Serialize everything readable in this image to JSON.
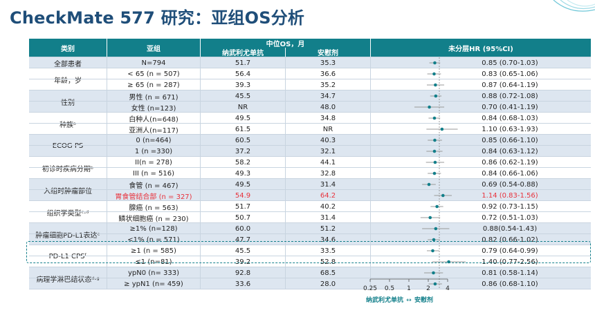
{
  "title": "CheckMate 577 研究：亚组OS分析",
  "headers": {
    "category": "类别",
    "subgroup": "亚组",
    "median_os": "中位OS，月",
    "arm_nivo": "纳武利尤单抗",
    "arm_placebo": "安慰剂",
    "hr": "未分层HR (95%CI)"
  },
  "rows": [
    {
      "category": "全部患者",
      "subgroup": "N=794",
      "nivo": "51.7",
      "placebo": "35.3",
      "hr_text": "0.85 (0.70-1.03)",
      "hr": 0.85,
      "lo": 0.7,
      "hi": 1.03,
      "highlight": false
    },
    {
      "category": "年龄，岁",
      "subgroup": "< 65 (n = 507)",
      "nivo": "56.4",
      "placebo": "36.6",
      "hr_text": "0.83 (0.65-1.06)",
      "hr": 0.83,
      "lo": 0.65,
      "hi": 1.06,
      "highlight": false
    },
    {
      "category": "",
      "subgroup": "≥ 65 (n = 287)",
      "nivo": "39.3",
      "placebo": "35.2",
      "hr_text": "0.87 (0.64-1.19)",
      "hr": 0.87,
      "lo": 0.64,
      "hi": 1.19,
      "highlight": false
    },
    {
      "category": "性别",
      "subgroup": "男性 (n = 671)",
      "nivo": "45.5",
      "placebo": "34.7",
      "hr_text": "0.88 (0.72-1.08)",
      "hr": 0.88,
      "lo": 0.72,
      "hi": 1.08,
      "highlight": false
    },
    {
      "category": "",
      "subgroup": "女性 (n=123)",
      "nivo": "NR",
      "placebo": "48.0",
      "hr_text": "0.70 (0.41-1.19)",
      "hr": 0.7,
      "lo": 0.41,
      "hi": 1.19,
      "highlight": false
    },
    {
      "category": "种族ᵃ",
      "subgroup": "白种人(n=648)",
      "nivo": "49.5",
      "placebo": "34.8",
      "hr_text": "0.84 (0.68-1.03)",
      "hr": 0.84,
      "lo": 0.68,
      "hi": 1.03,
      "highlight": false
    },
    {
      "category": "",
      "subgroup": "亚洲人(n=117)",
      "nivo": "61.5",
      "placebo": "NR",
      "hr_text": "1.10 (0.63-1.93)",
      "hr": 1.1,
      "lo": 0.63,
      "hi": 1.93,
      "highlight": false
    },
    {
      "category": "ECOG PS",
      "subgroup": "0 (n=464)",
      "nivo": "60.5",
      "placebo": "40.3",
      "hr_text": "0.85  (0.66-1.10)",
      "hr": 0.85,
      "lo": 0.66,
      "hi": 1.1,
      "highlight": false
    },
    {
      "category": "",
      "subgroup": "1 (n =330)",
      "nivo": "37.2",
      "placebo": "32.1",
      "hr_text": "0.84 (0.63-1.12)",
      "hr": 0.84,
      "lo": 0.63,
      "hi": 1.12,
      "highlight": false
    },
    {
      "category": "初诊时疾病分期ᵇ",
      "subgroup": "II(n = 278)",
      "nivo": "58.2",
      "placebo": "44.1",
      "hr_text": "0.86 (0.62-1.19)",
      "hr": 0.86,
      "lo": 0.62,
      "hi": 1.19,
      "highlight": false
    },
    {
      "category": "",
      "subgroup": "III (n = 516)",
      "nivo": "49.3",
      "placebo": "32.8",
      "hr_text": "0.84 (0.66-1.06)",
      "hr": 0.84,
      "lo": 0.66,
      "hi": 1.06,
      "highlight": false
    },
    {
      "category": "入组时肿瘤部位",
      "subgroup": "食管 (n = 467)",
      "nivo": "49.5",
      "placebo": "31.4",
      "hr_text": "0.69 (0.54-0.88)",
      "hr": 0.69,
      "lo": 0.54,
      "hi": 0.88,
      "highlight": false
    },
    {
      "category": "",
      "subgroup": "胃食管结合部 (n = 327)",
      "nivo": "54.9",
      "placebo": "64.2",
      "hr_text": "1.14 (0.83-1.56)",
      "hr": 1.14,
      "lo": 0.83,
      "hi": 1.56,
      "highlight": true
    },
    {
      "category": "组织学类型ᶜ·ᵈ",
      "subgroup": "腺癌 (n = 563)",
      "nivo": "51.7",
      "placebo": "40.2",
      "hr_text": "0.92 (0.73-1.15)",
      "hr": 0.92,
      "lo": 0.73,
      "hi": 1.15,
      "highlight": false
    },
    {
      "category": "",
      "subgroup": "鳞状细胞癌 (n = 230)",
      "nivo": "50.7",
      "placebo": "31.4",
      "hr_text": "0.72 (0.51-1.03)",
      "hr": 0.72,
      "lo": 0.51,
      "hi": 1.03,
      "highlight": false
    },
    {
      "category": "肿瘤细胞PD-L1表达ᵉ",
      "subgroup": "≥1% (n=128)",
      "nivo": "60.0",
      "placebo": "51.2",
      "hr_text": "0.88(0.54-1.43)",
      "hr": 0.88,
      "lo": 0.54,
      "hi": 1.43,
      "highlight": false
    },
    {
      "category": "",
      "subgroup": "<1% (n = 571)",
      "nivo": "47.7",
      "placebo": "34.6",
      "hr_text": "0.82 (0.66-1.02)",
      "hr": 0.82,
      "lo": 0.66,
      "hi": 1.02,
      "highlight": false
    },
    {
      "category": "PD-L1 CPSᶠ",
      "subgroup": "≥1 (n = 585)",
      "nivo": "45.5",
      "placebo": "33.5",
      "hr_text": "0.79 (0.64-0.99)",
      "hr": 0.79,
      "lo": 0.64,
      "hi": 0.99,
      "highlight": false
    },
    {
      "category": "",
      "subgroup": "≤1 (n=81)",
      "nivo": "39.2",
      "placebo": "52.8",
      "hr_text": "1.40 (0.77-2.56)",
      "hr": 1.4,
      "lo": 0.77,
      "hi": 2.56,
      "highlight": false
    },
    {
      "category": "病理学淋巴结状态ᵈ·ᵍ",
      "subgroup": "ypN0 (n= 333)",
      "nivo": "92.8",
      "placebo": "68.5",
      "hr_text": "0.81 (0.58-1.14)",
      "hr": 0.81,
      "lo": 0.58,
      "hi": 1.14,
      "highlight": false
    },
    {
      "category": "",
      "subgroup": "≥ ypN1 (n= 459)",
      "nivo": "33.6",
      "placebo": "28.0",
      "hr_text": "0.86 (0.68-1.10)",
      "hr": 0.86,
      "lo": 0.68,
      "hi": 1.1,
      "highlight": false
    }
  ],
  "axis": {
    "ticks": [
      "0.25",
      "0.5",
      "1",
      "2",
      "4"
    ],
    "favors_left": "纳武利尤单抗",
    "favors_right": "安慰剂"
  },
  "colors": {
    "teal": "#127f8a",
    "title": "#1f4e79",
    "highlight": "#e8323c",
    "shade": "#dde6f0"
  }
}
